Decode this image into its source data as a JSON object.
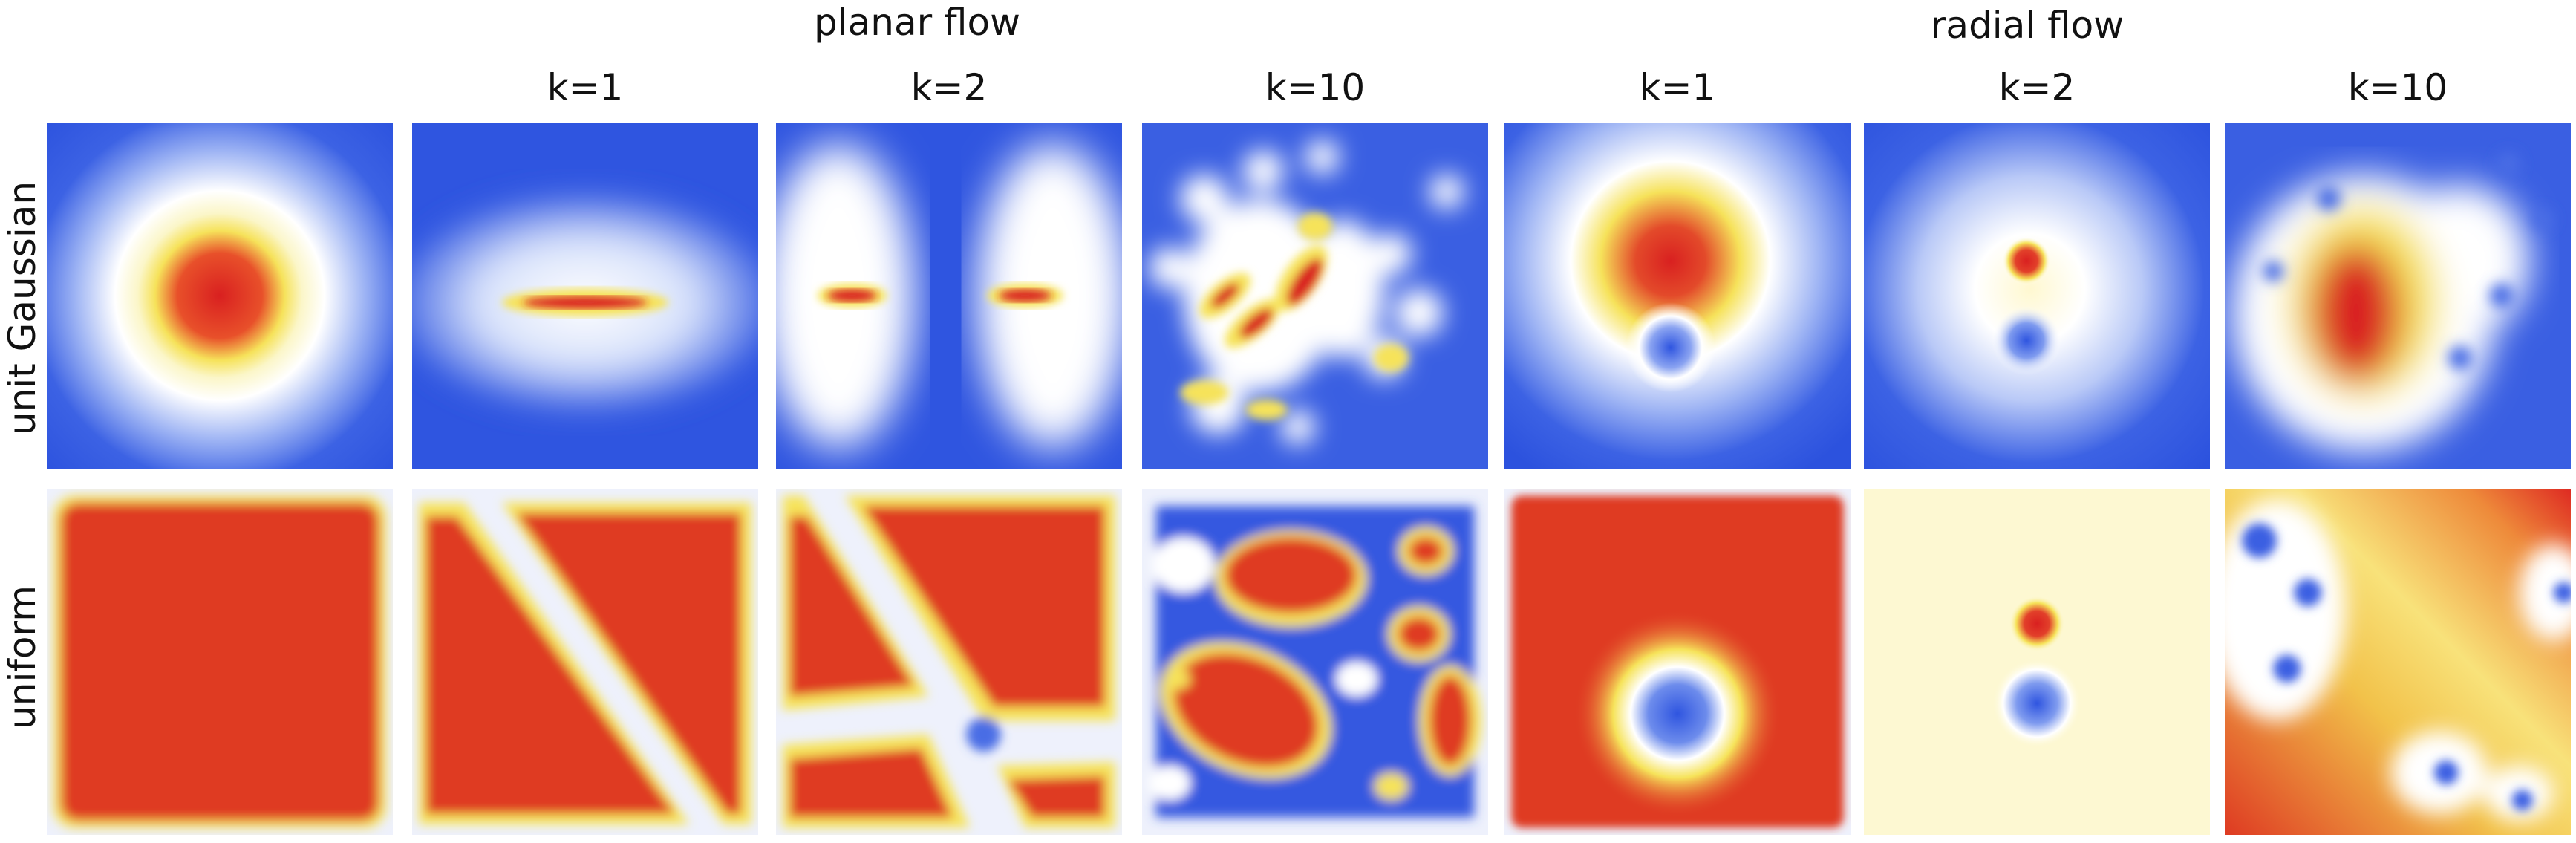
{
  "figure": {
    "group_titles": [
      "planar flow",
      "radial flow"
    ],
    "column_labels": [
      "k=1",
      "k=2",
      "k=10",
      "k=1",
      "k=2",
      "k=10"
    ],
    "row_labels": [
      "unit Gaussian",
      "uniform"
    ],
    "colormap": {
      "low": "#2f55e0",
      "mid": "#ffffff",
      "high_mid": "#f6e85a",
      "high": "#de2020"
    }
  }
}
